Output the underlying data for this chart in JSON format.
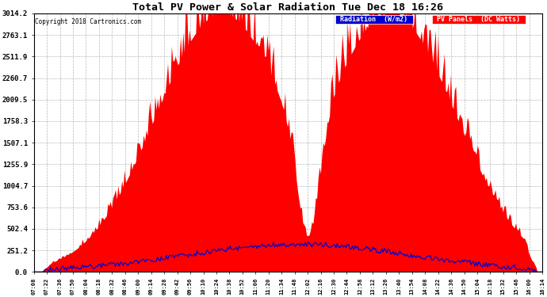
{
  "title": "Total PV Power & Solar Radiation Tue Dec 18 16:26",
  "copyright": "Copyright 2018 Cartronics.com",
  "yticks": [
    0.0,
    251.2,
    502.4,
    753.6,
    1004.7,
    1255.9,
    1507.1,
    1758.3,
    2009.5,
    2260.7,
    2511.9,
    2763.1,
    3014.2
  ],
  "ymax": 3014.2,
  "ymin": 0.0,
  "pv_color": "#ff0000",
  "radiation_color": "#0000cc",
  "bg_color": "#ffffff",
  "grid_color": "#888888",
  "legend_radiation_bg": "#0000cc",
  "legend_pv_bg": "#ff0000",
  "xtick_labels": [
    "07:08",
    "07:22",
    "07:36",
    "07:50",
    "08:04",
    "08:18",
    "08:32",
    "08:46",
    "09:00",
    "09:14",
    "09:28",
    "09:42",
    "09:56",
    "10:10",
    "10:24",
    "10:38",
    "10:52",
    "11:06",
    "11:20",
    "11:34",
    "11:48",
    "12:02",
    "12:16",
    "12:30",
    "12:44",
    "12:58",
    "13:12",
    "13:26",
    "13:40",
    "13:54",
    "14:08",
    "14:22",
    "14:36",
    "14:50",
    "15:04",
    "15:18",
    "15:32",
    "15:46",
    "16:00",
    "16:14"
  ]
}
